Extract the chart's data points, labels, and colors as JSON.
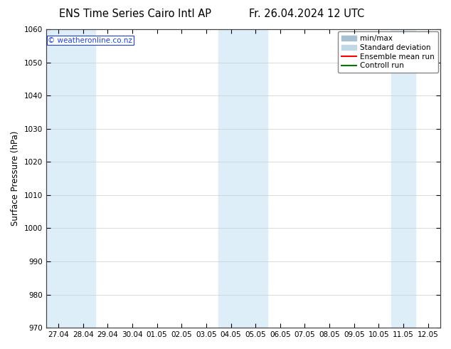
{
  "title_left": "ENS Time Series Cairo Intl AP",
  "title_right": "Fr. 26.04.2024 12 UTC",
  "ylabel": "Surface Pressure (hPa)",
  "ylim": [
    970,
    1060
  ],
  "yticks": [
    970,
    980,
    990,
    1000,
    1010,
    1020,
    1030,
    1040,
    1050,
    1060
  ],
  "x_labels": [
    "27.04",
    "28.04",
    "29.04",
    "30.04",
    "01.05",
    "02.05",
    "03.05",
    "04.05",
    "05.05",
    "06.05",
    "07.05",
    "08.05",
    "09.05",
    "10.05",
    "11.05",
    "12.05"
  ],
  "watermark": "© weatheronline.co.nz",
  "legend_entries": [
    "min/max",
    "Standard deviation",
    "Ensemble mean run",
    "Controll run"
  ],
  "shaded_indices": [
    0,
    1,
    7,
    8,
    14
  ],
  "shaded_color": "#ddeef8",
  "background_color": "#ffffff",
  "plot_bg_color": "#ffffff",
  "minmax_color": "#a8c0d0",
  "stddev_color": "#c0d8e8",
  "mean_color": "#ff0000",
  "control_color": "#007700",
  "title_fontsize": 10.5,
  "tick_fontsize": 7.5,
  "label_fontsize": 8.5,
  "legend_fontsize": 7.5
}
